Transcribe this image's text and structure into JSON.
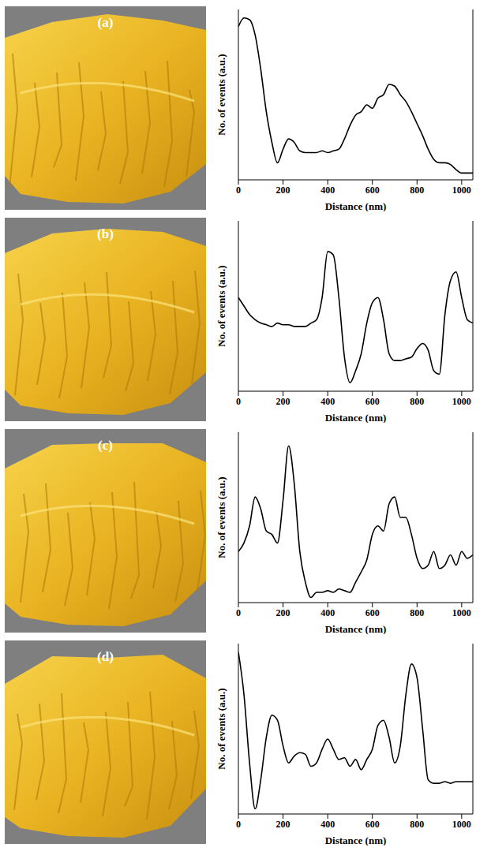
{
  "chart_data": [
    {
      "type": "line",
      "title": "(a)",
      "x_label": "Distance (nm)",
      "y_label": "No. of events (a.u.)",
      "x": [
        0,
        25,
        50,
        75,
        100,
        125,
        150,
        175,
        200,
        225,
        250,
        275,
        300,
        325,
        350,
        375,
        400,
        425,
        450,
        475,
        500,
        525,
        550,
        575,
        600,
        625,
        650,
        675,
        700,
        725,
        750,
        775,
        800,
        825,
        850,
        875,
        900,
        925,
        950,
        975,
        1000,
        1025,
        1050
      ],
      "values": [
        90,
        95,
        94,
        85,
        65,
        40,
        22,
        10,
        18,
        24,
        22,
        17,
        16,
        16,
        16,
        17,
        16,
        17,
        18,
        24,
        32,
        38,
        40,
        44,
        42,
        48,
        50,
        56,
        55,
        50,
        46,
        40,
        33,
        26,
        18,
        12,
        10,
        10,
        9,
        6,
        4,
        4,
        4
      ],
      "color": "#000000",
      "xlim": [
        0,
        1050
      ],
      "xticks": [
        0,
        200,
        400,
        600,
        800,
        1000
      ],
      "ylim": [
        0,
        100
      ],
      "tick_labels": "x"
    },
    {
      "type": "line",
      "title": "(b)",
      "x_label": "Distance (nm)",
      "y_label": "No. of events (a.u.)",
      "x": [
        0,
        25,
        50,
        75,
        100,
        125,
        150,
        175,
        200,
        225,
        250,
        275,
        300,
        325,
        350,
        375,
        400,
        425,
        450,
        475,
        500,
        525,
        550,
        575,
        600,
        625,
        650,
        675,
        700,
        725,
        750,
        775,
        800,
        825,
        850,
        875,
        900,
        925,
        950,
        975,
        1000,
        1025,
        1050
      ],
      "values": [
        55,
        50,
        45,
        42,
        40,
        39,
        38,
        40,
        39,
        39,
        38,
        38,
        38,
        40,
        42,
        55,
        82,
        80,
        55,
        20,
        5,
        12,
        22,
        40,
        52,
        55,
        42,
        22,
        18,
        18,
        19,
        20,
        25,
        28,
        24,
        12,
        10,
        45,
        65,
        70,
        55,
        42,
        40
      ],
      "color": "#000000",
      "xlim": [
        0,
        1050
      ],
      "xticks": [
        0,
        200,
        400,
        600,
        800,
        1000
      ],
      "ylim": [
        0,
        100
      ],
      "tick_labels": "x"
    },
    {
      "type": "line",
      "title": "(c)",
      "x_label": "Distance (nm)",
      "y_label": "No. of events (a.u.)",
      "x": [
        0,
        25,
        50,
        75,
        100,
        125,
        150,
        175,
        200,
        225,
        250,
        275,
        300,
        325,
        350,
        375,
        400,
        425,
        450,
        475,
        500,
        525,
        550,
        575,
        600,
        625,
        650,
        675,
        700,
        725,
        750,
        775,
        800,
        825,
        850,
        875,
        900,
        925,
        950,
        975,
        1000,
        1025,
        1050
      ],
      "values": [
        30,
        35,
        45,
        62,
        55,
        42,
        40,
        35,
        60,
        92,
        70,
        30,
        12,
        3,
        6,
        6,
        7,
        6,
        8,
        7,
        6,
        12,
        18,
        25,
        40,
        45,
        42,
        58,
        62,
        50,
        50,
        40,
        26,
        20,
        22,
        30,
        20,
        22,
        28,
        22,
        30,
        26,
        28
      ],
      "color": "#000000",
      "xlim": [
        0,
        1050
      ],
      "xticks": [
        0,
        200,
        400,
        600,
        800,
        1000
      ],
      "ylim": [
        0,
        100
      ],
      "tick_labels": "x"
    },
    {
      "type": "line",
      "title": "(d)",
      "x_label": "Distance (nm)",
      "y_label": "No. of events (a.u.)",
      "x": [
        0,
        25,
        50,
        75,
        100,
        125,
        150,
        175,
        200,
        225,
        250,
        275,
        300,
        325,
        350,
        375,
        400,
        425,
        450,
        475,
        500,
        525,
        550,
        575,
        600,
        625,
        650,
        675,
        700,
        725,
        750,
        775,
        800,
        825,
        850,
        875,
        900,
        925,
        950,
        975,
        1000,
        1025,
        1050
      ],
      "values": [
        95,
        70,
        30,
        3,
        20,
        45,
        58,
        55,
        40,
        30,
        34,
        36,
        35,
        28,
        30,
        38,
        44,
        38,
        32,
        33,
        28,
        32,
        26,
        32,
        38,
        52,
        55,
        45,
        30,
        40,
        70,
        88,
        80,
        50,
        20,
        18,
        18,
        19,
        18,
        19,
        19,
        19,
        19
      ],
      "color": "#000000",
      "xlim": [
        0,
        1050
      ],
      "xticks": [
        0,
        200,
        400,
        600,
        800,
        1000
      ],
      "ylim": [
        0,
        100
      ],
      "tick_labels": "x"
    }
  ]
}
